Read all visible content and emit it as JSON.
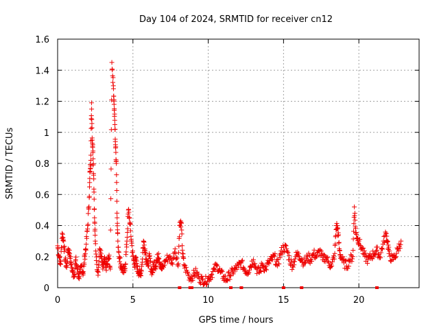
{
  "chart_data": {
    "type": "scatter",
    "title": "Day 104 of 2024, SRMTID for receiver cn12",
    "xlabel": "GPS time / hours",
    "ylabel": "SRMTID / TECUs",
    "xlim": [
      0,
      24
    ],
    "ylim": [
      0,
      1.6
    ],
    "xticks": [
      0,
      5,
      10,
      15,
      20
    ],
    "xtick_labels": [
      "0",
      "5",
      "10",
      "15",
      "20"
    ],
    "yticks": [
      0,
      0.2,
      0.4,
      0.6,
      0.8,
      1.0,
      1.2,
      1.4,
      1.6
    ],
    "ytick_labels": [
      "0",
      "0.2",
      "0.4",
      "0.6",
      "0.8",
      "1",
      "1.2",
      "1.4",
      "1.6"
    ],
    "grid": true,
    "marker": "+",
    "color": "#ee0000",
    "series": [
      {
        "name": "SRMTID",
        "x": [
          0.0,
          0.1,
          0.2,
          0.3,
          0.4,
          0.5,
          0.6,
          0.7,
          0.8,
          0.9,
          1.0,
          1.1,
          1.2,
          1.3,
          1.4,
          1.5,
          1.6,
          1.7,
          1.8,
          1.9,
          2.0,
          2.1,
          2.15,
          2.2,
          2.25,
          2.3,
          2.35,
          2.4,
          2.45,
          2.5,
          2.6,
          2.7,
          2.8,
          2.9,
          3.0,
          3.1,
          3.2,
          3.3,
          3.4,
          3.5,
          3.6,
          3.7,
          3.75,
          3.8,
          3.85,
          3.9,
          3.95,
          4.0,
          4.1,
          4.2,
          4.3,
          4.4,
          4.5,
          4.6,
          4.7,
          4.8,
          4.9,
          5.0,
          5.1,
          5.2,
          5.3,
          5.4,
          5.5,
          5.6,
          5.7,
          5.8,
          5.9,
          6.0,
          6.1,
          6.2,
          6.3,
          6.4,
          6.5,
          6.6,
          6.7,
          6.8,
          6.9,
          7.0,
          7.2,
          7.4,
          7.6,
          7.8,
          8.0,
          8.1,
          8.2,
          8.3,
          8.4,
          8.6,
          8.8,
          9.0,
          9.2,
          9.4,
          9.6,
          9.8,
          10.0,
          10.2,
          10.4,
          10.6,
          10.8,
          11.0,
          11.2,
          11.4,
          11.6,
          11.8,
          12.0,
          12.2,
          12.4,
          12.6,
          12.8,
          13.0,
          13.2,
          13.4,
          13.6,
          13.8,
          14.0,
          14.2,
          14.4,
          14.6,
          14.8,
          15.0,
          15.2,
          15.4,
          15.6,
          15.8,
          16.0,
          16.2,
          16.4,
          16.6,
          16.8,
          17.0,
          17.2,
          17.4,
          17.6,
          17.8,
          18.0,
          18.2,
          18.4,
          18.5,
          18.6,
          18.7,
          18.8,
          19.0,
          19.2,
          19.4,
          19.6,
          19.7,
          19.8,
          19.9,
          20.0,
          20.2,
          20.4,
          20.6,
          20.8,
          21.0,
          21.2,
          21.4,
          21.6,
          21.8,
          21.9,
          22.0,
          22.2,
          22.4,
          22.6,
          22.8
        ],
        "y": [
          0.27,
          0.2,
          0.15,
          0.35,
          0.3,
          0.18,
          0.13,
          0.25,
          0.22,
          0.15,
          0.1,
          0.08,
          0.18,
          0.12,
          0.07,
          0.1,
          0.14,
          0.09,
          0.2,
          0.28,
          0.4,
          0.58,
          0.75,
          0.82,
          1.19,
          0.95,
          0.88,
          0.7,
          0.45,
          0.3,
          0.15,
          0.1,
          0.25,
          0.2,
          0.12,
          0.18,
          0.13,
          0.15,
          0.2,
          0.12,
          1.45,
          1.3,
          1.18,
          1.05,
          0.9,
          0.8,
          0.45,
          0.3,
          0.2,
          0.14,
          0.12,
          0.1,
          0.15,
          0.3,
          0.5,
          0.42,
          0.3,
          0.2,
          0.15,
          0.18,
          0.12,
          0.1,
          0.08,
          0.15,
          0.3,
          0.25,
          0.18,
          0.14,
          0.2,
          0.12,
          0.1,
          0.16,
          0.14,
          0.18,
          0.22,
          0.15,
          0.12,
          0.14,
          0.18,
          0.2,
          0.16,
          0.25,
          0.14,
          0.4,
          0.42,
          0.22,
          0.14,
          0.1,
          0.06,
          0.08,
          0.1,
          0.06,
          0.05,
          0.04,
          0.06,
          0.08,
          0.12,
          0.14,
          0.1,
          0.07,
          0.05,
          0.08,
          0.1,
          0.12,
          0.14,
          0.16,
          0.12,
          0.1,
          0.14,
          0.18,
          0.12,
          0.1,
          0.15,
          0.12,
          0.16,
          0.18,
          0.2,
          0.14,
          0.22,
          0.26,
          0.25,
          0.18,
          0.14,
          0.2,
          0.22,
          0.18,
          0.16,
          0.2,
          0.18,
          0.22,
          0.2,
          0.24,
          0.18,
          0.2,
          0.16,
          0.14,
          0.22,
          0.4,
          0.38,
          0.25,
          0.2,
          0.16,
          0.14,
          0.18,
          0.2,
          0.52,
          0.35,
          0.32,
          0.3,
          0.25,
          0.2,
          0.18,
          0.2,
          0.22,
          0.24,
          0.2,
          0.28,
          0.35,
          0.3,
          0.22,
          0.18,
          0.2,
          0.25,
          0.3
        ]
      }
    ],
    "zero_line_marks_x": [
      8.1,
      8.8,
      8.9,
      11.5,
      12.2,
      15.0,
      16.2,
      21.2
    ]
  }
}
